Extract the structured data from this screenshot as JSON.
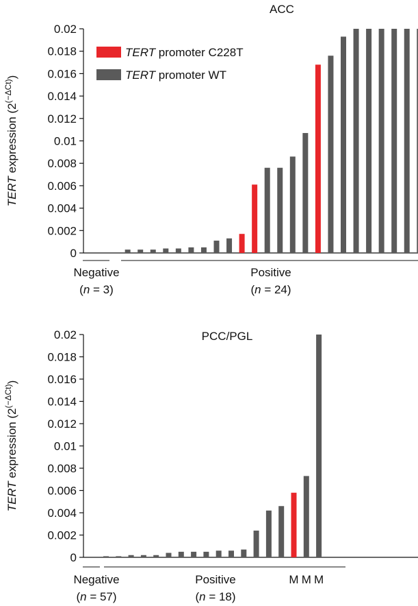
{
  "chart_data": [
    {
      "type": "bar",
      "title": "ACC",
      "ylabel": {
        "italic": "TERT",
        "text": " expression (2",
        "sup": "(−ΔCt)",
        "close": ")"
      },
      "ylim": [
        0,
        0.02
      ],
      "yticks": [
        "0",
        "0.002",
        "0.004",
        "0.006",
        "0.008",
        "0.01",
        "0.012",
        "0.014",
        "0.016",
        "0.018",
        "0.02"
      ],
      "colors": {
        "mutant": "#e8262a",
        "wt": "#5a5a5a"
      },
      "legend": {
        "placement": "top-left",
        "items": [
          {
            "italic": "TERT",
            "text": " promoter C228T",
            "color": "#e8262a"
          },
          {
            "italic": "TERT",
            "text": " promoter WT",
            "color": "#5a5a5a"
          }
        ]
      },
      "values": [
        0,
        0,
        0,
        0.0003,
        0.0003,
        0.0003,
        0.0004,
        0.0004,
        0.0005,
        0.0005,
        0.0011,
        0.0013,
        0.0017,
        0.0061,
        0.0076,
        0.0076,
        0.0086,
        0.0107,
        0.0168,
        0.0176,
        0.0193,
        0.02,
        0.02,
        0.02,
        0.02,
        0.02,
        0.02
      ],
      "highlight": [
        12,
        13,
        18
      ],
      "groups": [
        {
          "label": "Negative",
          "n_pre": "(",
          "n_italic": "n",
          "n_post": " = 3)",
          "start": 0,
          "end": 2
        },
        {
          "label": "Positive",
          "n_pre": "(",
          "n_italic": "n",
          "n_post": " = 24)",
          "start": 3,
          "end": 26
        }
      ],
      "markers": []
    },
    {
      "type": "bar",
      "title": "PCC/PGL",
      "ylabel": {
        "italic": "TERT",
        "text": " expression (2",
        "sup": "(−ΔCt)",
        "close": ")"
      },
      "ylim": [
        0,
        0.02
      ],
      "yticks": [
        "0",
        "0.002",
        "0.004",
        "0.006",
        "0.008",
        "0.01",
        "0.012",
        "0.014",
        "0.016",
        "0.018",
        "0.02"
      ],
      "colors": {
        "mutant": "#e8262a",
        "wt": "#5a5a5a"
      },
      "values": [
        0.0001,
        0.0001,
        0.0002,
        0.0002,
        0.0002,
        0.0004,
        0.0005,
        0.0005,
        0.0005,
        0.0006,
        0.0006,
        0.0007,
        0.0024,
        0.0042,
        0.0046,
        0.0058,
        0.0073,
        0.02
      ],
      "highlight": [
        15
      ],
      "groups": [
        {
          "label": "Negative",
          "n_pre": "(",
          "n_italic": "n",
          "n_post": " = 57)",
          "start": -1,
          "end": -1
        },
        {
          "label": "Positive",
          "n_pre": "(",
          "n_italic": "n",
          "n_post": " = 18)",
          "start": 0,
          "end": 17
        }
      ],
      "markers": [
        {
          "text": "M",
          "index": 15
        },
        {
          "text": "M",
          "index": 16
        },
        {
          "text": "M",
          "index": 17
        }
      ]
    }
  ]
}
